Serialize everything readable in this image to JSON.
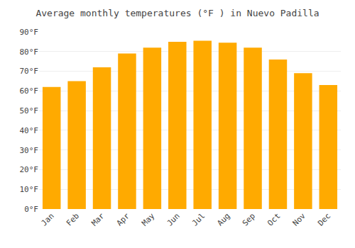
{
  "chart_data": {
    "type": "bar",
    "title": "Average monthly temperatures (°F ) in Nuevo Padilla",
    "categories": [
      "Jan",
      "Feb",
      "Mar",
      "Apr",
      "May",
      "Jun",
      "Jul",
      "Aug",
      "Sep",
      "Oct",
      "Nov",
      "Dec"
    ],
    "values": [
      62,
      65,
      72,
      79,
      82,
      85,
      85.5,
      84.5,
      82,
      76,
      69,
      63
    ],
    "color": "#FFAA00",
    "ylim": [
      0,
      90
    ],
    "yticks": [
      {
        "value": 0,
        "label": "0°F"
      },
      {
        "value": 10,
        "label": "10°F"
      },
      {
        "value": 20,
        "label": "20°F"
      },
      {
        "value": 30,
        "label": "30°F"
      },
      {
        "value": 40,
        "label": "40°F"
      },
      {
        "value": 50,
        "label": "50°F"
      },
      {
        "value": 60,
        "label": "60°F"
      },
      {
        "value": 70,
        "label": "70°F"
      },
      {
        "value": 80,
        "label": "80°F"
      },
      {
        "value": 90,
        "label": "90°F"
      }
    ],
    "grid": true
  }
}
